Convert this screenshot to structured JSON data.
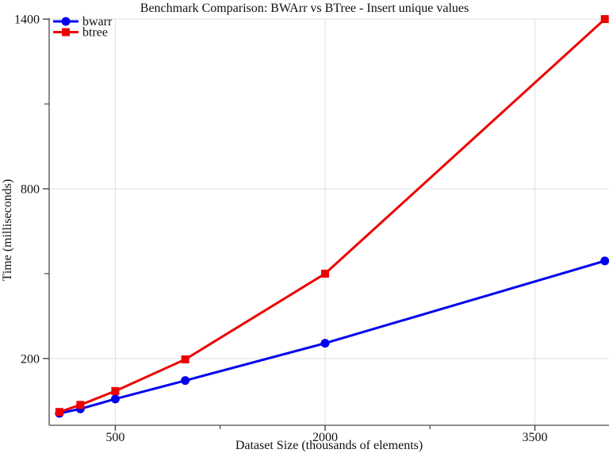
{
  "chart_data": {
    "type": "line",
    "title": "Benchmark Comparison: BWArr vs BTree - Insert unique values",
    "xlabel": "Dataset Size (thousands of elements)",
    "ylabel": "Time (milliseconds)",
    "x": [
      100,
      250,
      500,
      1000,
      2000,
      4000
    ],
    "series": [
      {
        "name": "bwarr",
        "color": "#0000ee",
        "marker": "circle",
        "values": [
          6,
          22,
          57,
          122,
          254,
          545
        ]
      },
      {
        "name": "btree",
        "color": "#ee0000",
        "marker": "square",
        "values": [
          11,
          36,
          85,
          197,
          500,
          1400
        ]
      }
    ],
    "xlim": [
      27,
      4030
    ],
    "ylim": [
      -36,
      1403
    ],
    "x_major_ticks": [
      500,
      2000,
      3500
    ],
    "x_minor_ticks": [
      1250,
      2750
    ],
    "y_major_ticks": [
      200,
      800,
      1400
    ],
    "y_minor_ticks": [
      500,
      1100
    ],
    "x_tick_labels": [
      "500",
      "2000",
      "3500"
    ],
    "y_tick_labels": [
      "200",
      "800",
      "1400"
    ],
    "grid": true,
    "legend_position": "top-left",
    "colors": {
      "grid": "#e6e6e6",
      "axis": "#6b6b6b",
      "tick": "#444444",
      "text": "#111111",
      "background": "#ffffff"
    }
  }
}
